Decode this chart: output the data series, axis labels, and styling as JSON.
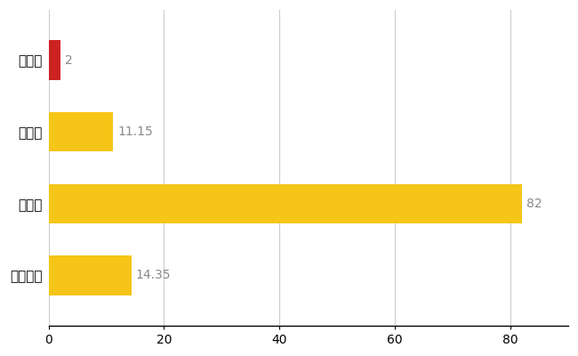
{
  "categories": [
    "横浜町",
    "県平均",
    "県最大",
    "全国平均"
  ],
  "values": [
    2,
    11.15,
    82,
    14.35
  ],
  "bar_colors": [
    "#cc2222",
    "#f5c518",
    "#f5c518",
    "#f5c518"
  ],
  "value_labels": [
    "2",
    "11.15",
    "82",
    "14.35"
  ],
  "xlim": [
    0,
    90
  ],
  "xticks": [
    0,
    20,
    40,
    60,
    80
  ],
  "grid_color": "#cccccc",
  "background_color": "#ffffff",
  "bar_height": 0.55,
  "label_fontsize": 10,
  "tick_fontsize": 10,
  "ytick_fontsize": 11
}
